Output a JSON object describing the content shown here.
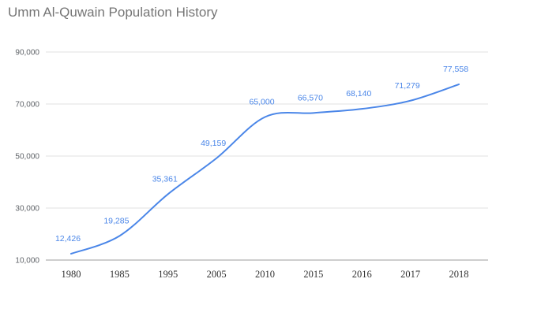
{
  "chart_data": {
    "type": "line",
    "title": "Umm Al-Quwain Population History",
    "categories": [
      "1980",
      "1985",
      "1995",
      "2005",
      "2010",
      "2015",
      "2016",
      "2017",
      "2018"
    ],
    "series": [
      {
        "values": [
          12426,
          19285,
          35361,
          49159,
          65000,
          66570,
          68140,
          71279,
          77558
        ],
        "data_labels": [
          "12,426",
          "19,285",
          "35,361",
          "49,159",
          "65,000",
          "66,570",
          "68,140",
          "71,279",
          "77,558"
        ]
      }
    ],
    "yticks": [
      10000,
      30000,
      50000,
      70000,
      90000
    ],
    "ytick_labels": [
      "10,000",
      "30,000",
      "50,000",
      "70,000",
      "90,000"
    ],
    "ylim": [
      10000,
      90000
    ],
    "xlabel": "",
    "ylabel": "",
    "grid": true,
    "legend": "none",
    "colors": {
      "line": "#4a86e8",
      "label": "#4a86e8",
      "grid": "#e0e0e0",
      "baseline": "#9e9e9e"
    }
  }
}
